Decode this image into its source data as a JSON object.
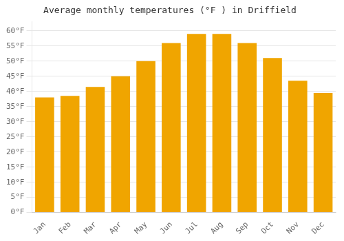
{
  "chart_data": {
    "type": "bar",
    "title": "Average monthly temperatures (°F ) in Driffield",
    "categories": [
      "Jan",
      "Feb",
      "Mar",
      "Apr",
      "May",
      "Jun",
      "Jul",
      "Aug",
      "Sep",
      "Oct",
      "Nov",
      "Dec"
    ],
    "values": [
      38,
      38.5,
      41.5,
      45,
      50,
      56,
      59,
      59,
      56,
      51,
      43.5,
      39.5
    ],
    "color": "#F0A500",
    "ylim": [
      0,
      63
    ],
    "yticks": [
      {
        "value": 0,
        "label": "0°F"
      },
      {
        "value": 5,
        "label": "5°F"
      },
      {
        "value": 10,
        "label": "10°F"
      },
      {
        "value": 15,
        "label": "15°F"
      },
      {
        "value": 20,
        "label": "20°F"
      },
      {
        "value": 25,
        "label": "25°F"
      },
      {
        "value": 30,
        "label": "30°F"
      },
      {
        "value": 35,
        "label": "35°F"
      },
      {
        "value": 40,
        "label": "40°F"
      },
      {
        "value": 45,
        "label": "45°F"
      },
      {
        "value": 50,
        "label": "50°F"
      },
      {
        "value": 55,
        "label": "55°F"
      },
      {
        "value": 60,
        "label": "60°F"
      }
    ],
    "grid": true
  }
}
